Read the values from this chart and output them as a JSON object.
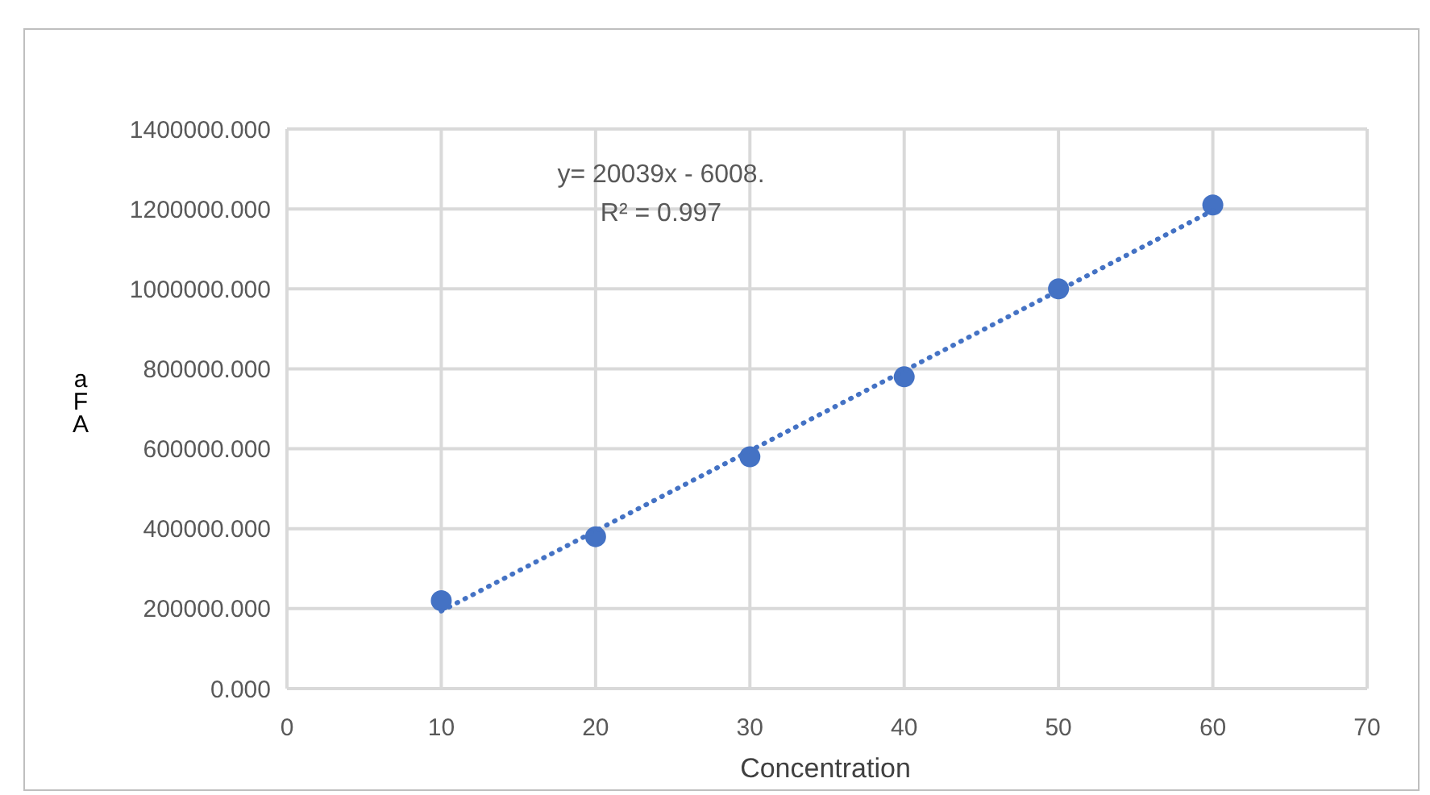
{
  "chart_data": {
    "type": "scatter",
    "xlabel": "Concentration",
    "ylabel": "aFA",
    "annotations": [
      "y= 20039x - 6008.",
      "R² = 0.997"
    ],
    "xlim": [
      0,
      70
    ],
    "xticks": [
      0,
      10,
      20,
      30,
      40,
      50,
      60,
      70
    ],
    "ylim": [
      0,
      1400000
    ],
    "yticks": [
      {
        "value": 0,
        "label": "0.000"
      },
      {
        "value": 200000,
        "label": "200000.000"
      },
      {
        "value": 400000,
        "label": "400000.000"
      },
      {
        "value": 600000,
        "label": "600000.000"
      },
      {
        "value": 800000,
        "label": "800000.000"
      },
      {
        "value": 1000000,
        "label": "1000000.000"
      },
      {
        "value": 1200000,
        "label": "1200000.000"
      },
      {
        "value": 1400000,
        "label": "1400000.000"
      }
    ],
    "grid": true,
    "marker": "circle",
    "series": [
      {
        "color": "#4472c4",
        "x": [
          10,
          20,
          30,
          40,
          50,
          60
        ],
        "values": [
          220000,
          380000,
          580000,
          780000,
          1000000,
          1210000
        ]
      },
      {
        "type": "line",
        "color": "#4472c4",
        "line_style": "dotted",
        "marker": "none",
        "x": [
          10,
          60
        ],
        "values": [
          194000,
          1196000
        ]
      }
    ]
  }
}
